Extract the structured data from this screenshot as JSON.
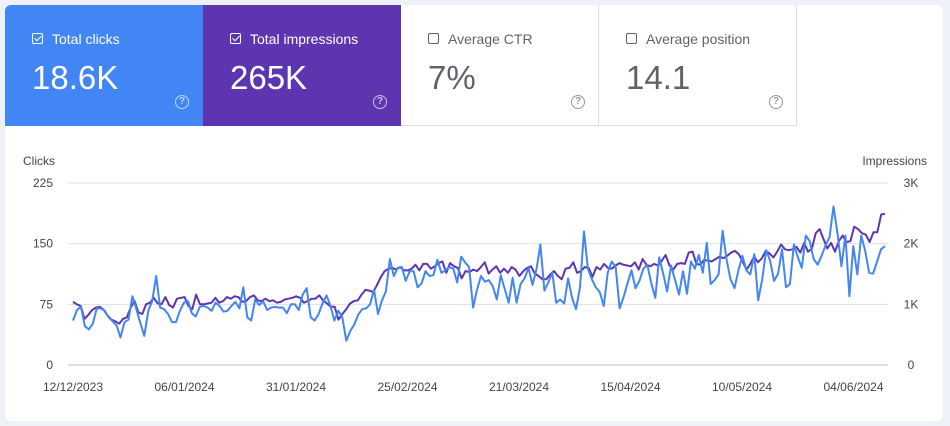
{
  "cards": [
    {
      "label": "Total clicks",
      "value": "18.6K",
      "checked": true
    },
    {
      "label": "Total impressions",
      "value": "265K",
      "checked": true
    },
    {
      "label": "Average CTR",
      "value": "7%",
      "checked": false
    },
    {
      "label": "Average position",
      "value": "14.1",
      "checked": false
    }
  ],
  "colors": {
    "clicks": "#4285f4",
    "impressions": "#5e35b1",
    "grid": "#e0e0e0"
  },
  "icons": {
    "help": "help-circle-icon",
    "check": "checkbox-icon"
  },
  "chart_data": {
    "type": "line",
    "xlabel": "",
    "ylabel": "Clicks",
    "y2label": "Impressions",
    "x_start": "12/12/2023",
    "x_end": "10/06/2024",
    "xticks": [
      "12/12/2023",
      "06/01/2024",
      "31/01/2024",
      "25/02/2024",
      "21/03/2024",
      "15/04/2024",
      "10/05/2024",
      "04/06/2024"
    ],
    "yticks": [
      "0",
      "75",
      "150",
      "225"
    ],
    "y2ticks": [
      "0",
      "1K",
      "2K",
      "3K"
    ],
    "ylim": [
      0,
      225
    ],
    "y2lim": [
      0,
      3000
    ],
    "grid": true,
    "series": [
      {
        "name": "Clicks",
        "axis": "left",
        "values": [
          55,
          68,
          72,
          48,
          44,
          51,
          70,
          70,
          67,
          59,
          54,
          49,
          34,
          53,
          56,
          85,
          69,
          52,
          36,
          67,
          79,
          110,
          71,
          69,
          63,
          53,
          53,
          67,
          77,
          79,
          64,
          60,
          72,
          73,
          71,
          67,
          77,
          73,
          66,
          67,
          73,
          78,
          70,
          96,
          59,
          55,
          81,
          74,
          79,
          68,
          71,
          72,
          71,
          71,
          64,
          75,
          75,
          68,
          87,
          95,
          59,
          55,
          63,
          76,
          86,
          73,
          55,
          67,
          59,
          30,
          42,
          50,
          62,
          69,
          70,
          75,
          93,
          63,
          80,
          91,
          131,
          110,
          120,
          121,
          104,
          116,
          116,
          96,
          101,
          116,
          110,
          111,
          130,
          114,
          117,
          121,
          119,
          102,
          134,
          127,
          121,
          71,
          93,
          110,
          103,
          105,
          97,
          81,
          111,
          94,
          77,
          108,
          77,
          100,
          107,
          120,
          99,
          118,
          149,
          92,
          102,
          114,
          77,
          81,
          76,
          107,
          83,
          69,
          96,
          165,
          119,
          106,
          96,
          90,
          73,
          114,
          128,
          121,
          70,
          84,
          101,
          117,
          95,
          104,
          119,
          124,
          101,
          83,
          133,
          113,
          91,
          123,
          105,
          87,
          116,
          88,
          128,
          119,
          136,
          114,
          151,
          100,
          105,
          112,
          166,
          130,
          106,
          95,
          117,
          135,
          117,
          112,
          137,
          80,
          106,
          142,
          129,
          104,
          113,
          143,
          96,
          100,
          149,
          133,
          120,
          160,
          153,
          131,
          124,
          135,
          148,
          158,
          196,
          163,
          122,
          160,
          85,
          147,
          112,
          160,
          141,
          114,
          113,
          128,
          143,
          147
        ]
      },
      {
        "name": "Impressions",
        "axis": "right",
        "values": [
          1040,
          1000,
          973,
          760,
          827,
          907,
          947,
          960,
          907,
          813,
          747,
          720,
          680,
          760,
          787,
          947,
          1053,
          867,
          840,
          1000,
          1027,
          1107,
          1013,
          1000,
          1120,
          987,
          947,
          1093,
          1107,
          1120,
          973,
          920,
          1160,
          1000,
          1000,
          1013,
          1027,
          1107,
          1027,
          1053,
          1120,
          1093,
          1133,
          1120,
          1040,
          1053,
          1120,
          1147,
          1067,
          1053,
          1093,
          1053,
          1067,
          1027,
          1040,
          1080,
          1093,
          1107,
          1133,
          1107,
          1027,
          1053,
          1093,
          1093,
          1147,
          1067,
          1013,
          960,
          960,
          747,
          840,
          920,
          1013,
          1053,
          1067,
          1160,
          1240,
          1227,
          1200,
          1320,
          1453,
          1547,
          1587,
          1600,
          1573,
          1613,
          1560,
          1560,
          1587,
          1653,
          1560,
          1667,
          1667,
          1587,
          1627,
          1680,
          1707,
          1520,
          1680,
          1627,
          1600,
          1427,
          1547,
          1533,
          1573,
          1547,
          1613,
          1693,
          1507,
          1573,
          1627,
          1520,
          1587,
          1520,
          1613,
          1573,
          1467,
          1547,
          1600,
          1627,
          1507,
          1467,
          1413,
          1413,
          1493,
          1547,
          1467,
          1413,
          1587,
          1600,
          1693,
          1520,
          1547,
          1613,
          1600,
          1453,
          1613,
          1573,
          1667,
          1600,
          1587,
          1640,
          1680,
          1653,
          1640,
          1627,
          1693,
          1573,
          1747,
          1653,
          1627,
          1667,
          1640,
          1720,
          1813,
          1640,
          1573,
          1667,
          1680,
          1667,
          1853,
          1867,
          1667,
          1653,
          1733,
          1720,
          1707,
          1747,
          1787,
          1760,
          1800,
          1853,
          1880,
          1827,
          1707,
          1573,
          1667,
          1787,
          1693,
          1760,
          1880,
          1840,
          1773,
          1867,
          1987,
          1907,
          1893,
          1907,
          1947,
          1853,
          2013,
          1867,
          1920,
          2173,
          2240,
          2080,
          1920,
          2013,
          1867,
          2040,
          2133,
          2027,
          2040,
          2280,
          2240,
          2173,
          2147,
          2027,
          2187,
          2187,
          2480,
          2493
        ]
      }
    ]
  }
}
